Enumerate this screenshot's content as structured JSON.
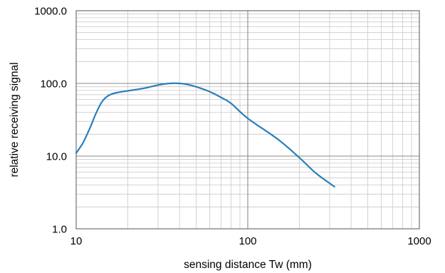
{
  "chart_data": {
    "type": "line",
    "x_scale": "log",
    "y_scale": "log",
    "xlim": [
      10,
      1000
    ],
    "ylim": [
      1,
      1000
    ],
    "xlabel": "sensing distance Tw (mm)",
    "ylabel": "relative receiving signal",
    "x_tick_labels": [
      {
        "value": 10,
        "label": "10"
      },
      {
        "value": 100,
        "label": "100"
      },
      {
        "value": 1000,
        "label": "1000"
      }
    ],
    "y_tick_labels": [
      {
        "value": 1,
        "label": "1.0"
      },
      {
        "value": 10,
        "label": "10.0"
      },
      {
        "value": 100,
        "label": "100.0"
      },
      {
        "value": 1000,
        "label": "1000.0"
      }
    ],
    "grid": true,
    "legend": "none",
    "series": [
      {
        "color": "#2a7fb8",
        "points": [
          [
            10,
            11
          ],
          [
            10.5,
            13
          ],
          [
            11,
            15.5
          ],
          [
            12,
            24
          ],
          [
            13,
            38
          ],
          [
            14,
            54
          ],
          [
            15,
            65
          ],
          [
            16,
            71
          ],
          [
            17.5,
            75
          ],
          [
            20,
            79
          ],
          [
            25,
            86
          ],
          [
            30,
            95
          ],
          [
            35,
            100
          ],
          [
            40,
            100
          ],
          [
            45,
            96
          ],
          [
            50,
            90
          ],
          [
            60,
            77
          ],
          [
            70,
            64
          ],
          [
            80,
            53
          ],
          [
            100,
            33
          ],
          [
            150,
            17
          ],
          [
            200,
            9.5
          ],
          [
            250,
            5.8
          ],
          [
            320,
            3.8
          ]
        ]
      }
    ]
  }
}
